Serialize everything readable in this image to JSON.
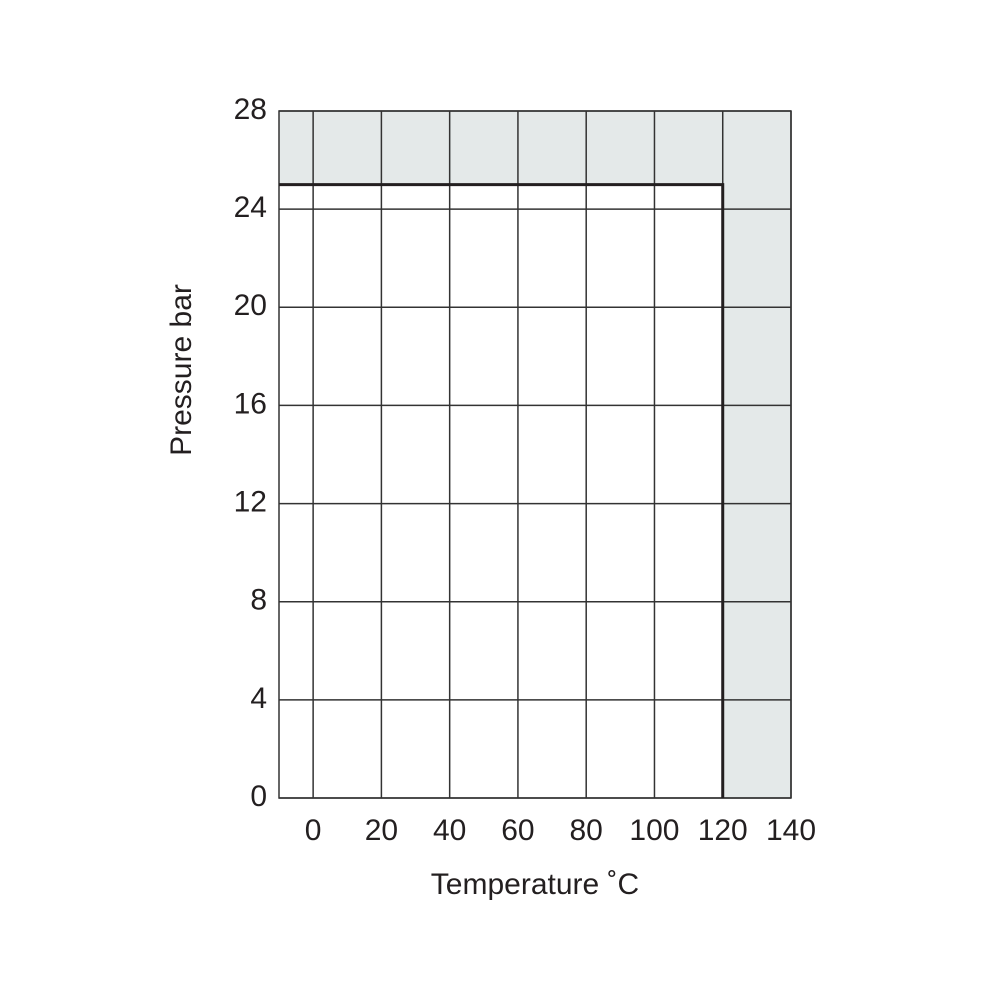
{
  "chart_data": {
    "type": "line",
    "x": [
      -10,
      120,
      120
    ],
    "series": [
      {
        "values": [
          25,
          25,
          0
        ],
        "color": "#231f20"
      }
    ],
    "xlim": [
      -10,
      140
    ],
    "ylim": [
      0,
      28
    ],
    "xticks": [
      0,
      20,
      40,
      60,
      80,
      100,
      120,
      140
    ],
    "yticks": [
      0,
      4,
      8,
      12,
      16,
      20,
      24,
      28
    ],
    "xlabel": "Temperature ˚C",
    "ylabel": "Pressure bar",
    "grid": true,
    "outside_fill": "#e4e9e9"
  }
}
